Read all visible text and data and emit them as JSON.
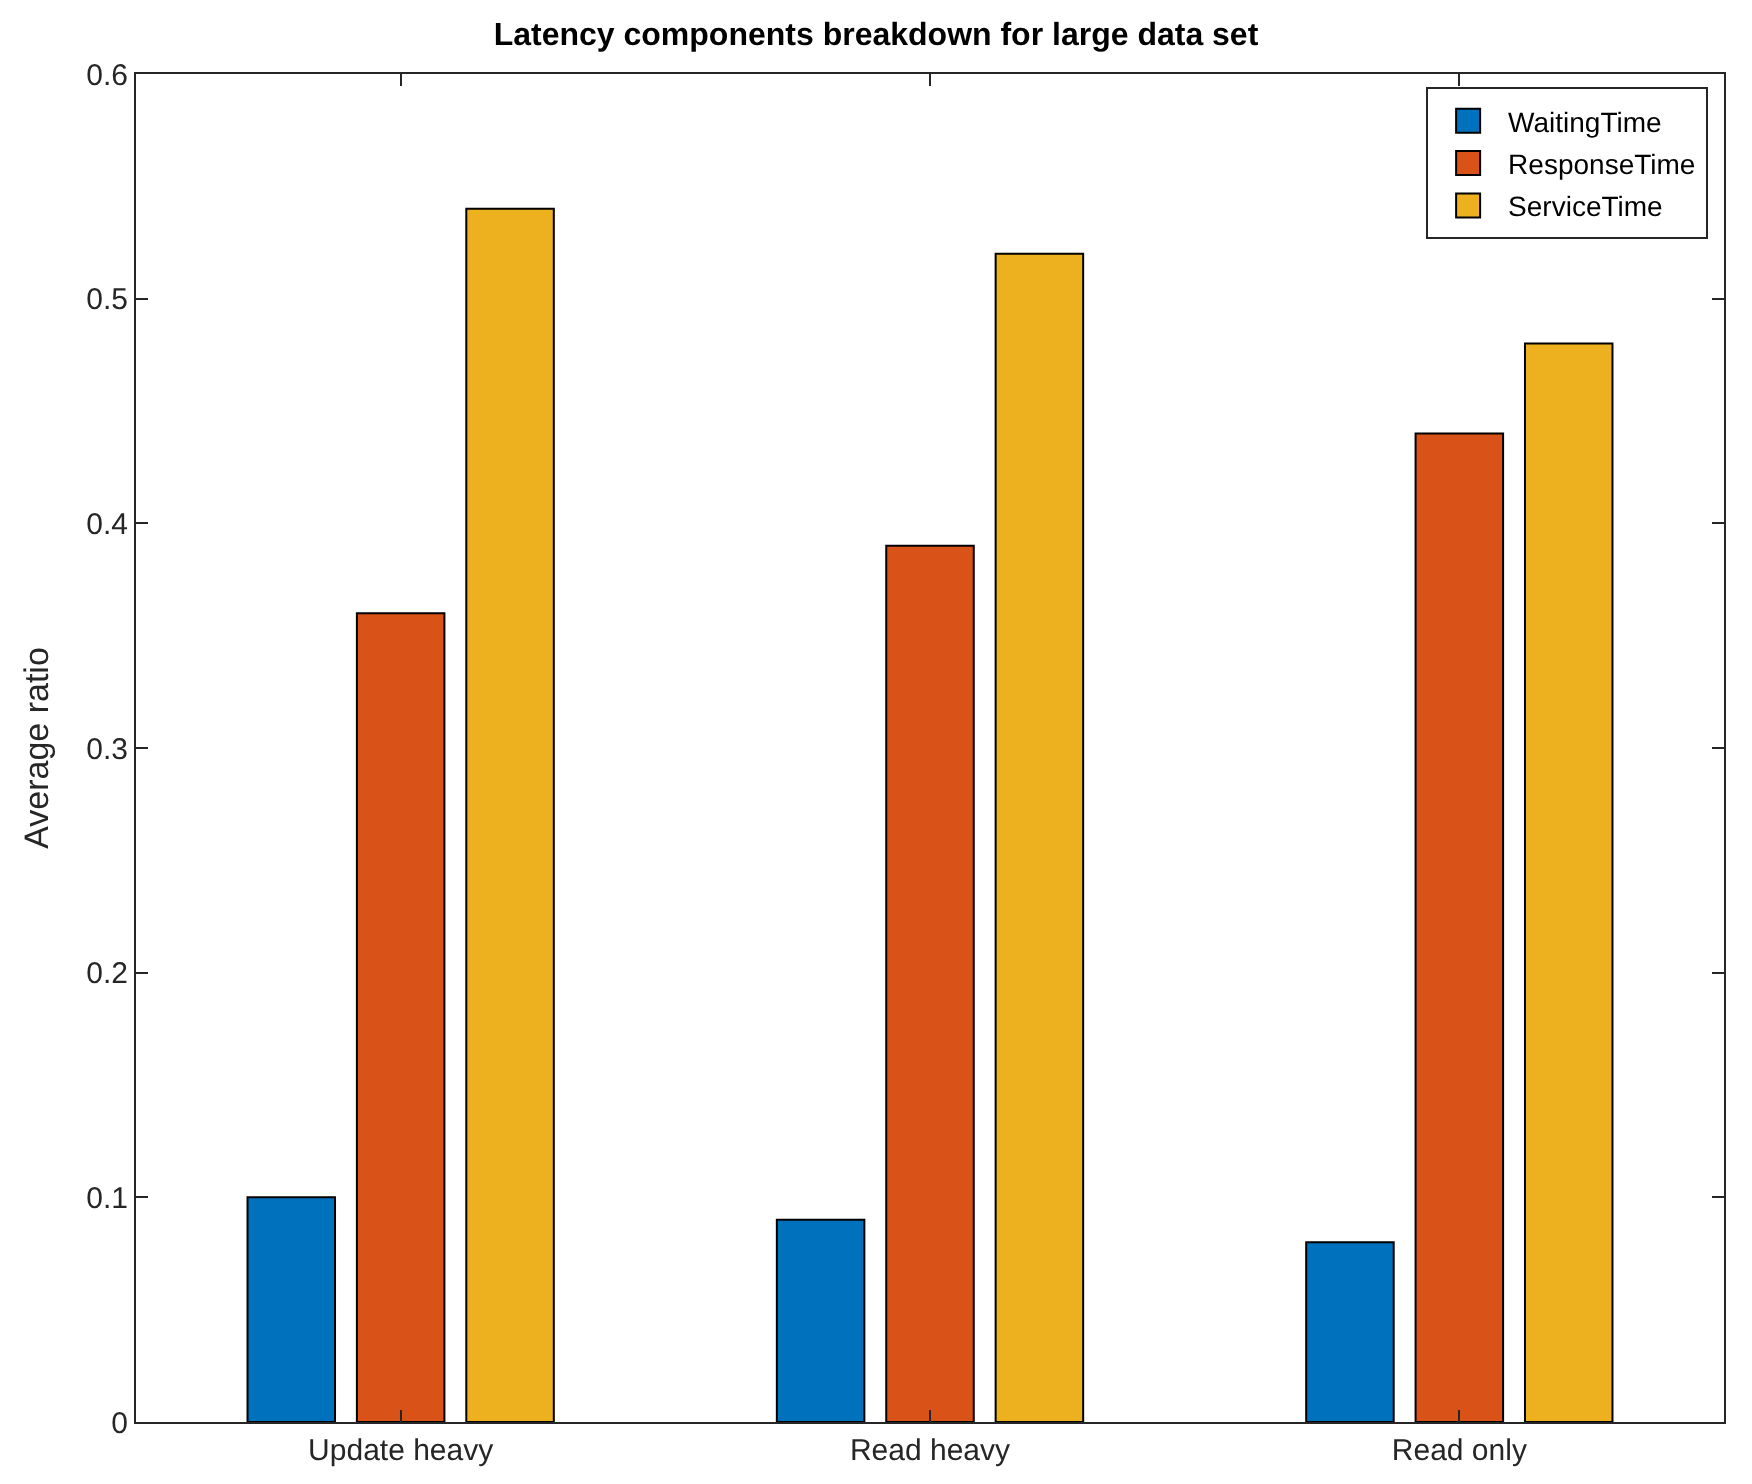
{
  "chart_data": {
    "type": "bar",
    "title": "Latency components breakdown for large data set",
    "ylabel": "Average ratio",
    "categories": [
      "Update heavy",
      "Read heavy",
      "Read only"
    ],
    "series": [
      {
        "name": "WaitingTime",
        "color": "#0072bd",
        "values": [
          0.1,
          0.09,
          0.08
        ]
      },
      {
        "name": "ResponseTime",
        "color": "#d95319",
        "values": [
          0.36,
          0.39,
          0.44
        ]
      },
      {
        "name": "ServiceTime",
        "color": "#edb120",
        "values": [
          0.54,
          0.52,
          0.48
        ]
      }
    ],
    "ylim": [
      0,
      0.6
    ],
    "yticks": [
      0,
      0.1,
      0.2,
      0.3,
      0.4,
      0.5,
      0.6
    ],
    "grid": false,
    "legend": "top right"
  }
}
